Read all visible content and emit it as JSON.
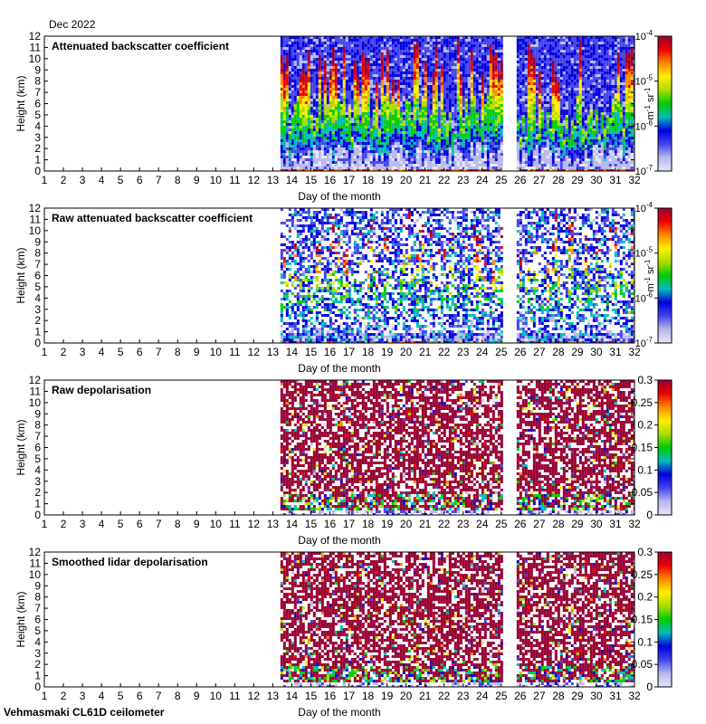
{
  "header": {
    "month_label": "Dec 2022"
  },
  "footer": {
    "station_label": "Vehmasmaki CL61D ceilometer"
  },
  "chart_data": [
    {
      "type": "heatmap",
      "title": "Attenuated backscatter coefficient",
      "xlabel": "Day of the month",
      "ylabel": "Height (km)",
      "xlim": [
        1,
        32
      ],
      "ylim": [
        0,
        12
      ],
      "xticks": [
        1,
        2,
        3,
        4,
        5,
        6,
        7,
        8,
        9,
        10,
        11,
        12,
        13,
        14,
        15,
        16,
        17,
        18,
        19,
        20,
        21,
        22,
        23,
        24,
        25,
        26,
        27,
        28,
        29,
        30,
        31,
        32
      ],
      "yticks": [
        0,
        1,
        2,
        3,
        4,
        5,
        6,
        7,
        8,
        9,
        10,
        11,
        12
      ],
      "data_start_day": 13.4,
      "data_gap_days": [
        [
          25.1,
          25.75
        ]
      ],
      "colorbar": {
        "scale": "log",
        "range": [
          1e-07,
          0.0001
        ],
        "ticks": [
          "10-7",
          "10-6",
          "10-5",
          "10-4"
        ],
        "label": "m-1 sr-1"
      }
    },
    {
      "type": "heatmap",
      "title": "Raw attenuated backscatter coefficient",
      "xlabel": "Day of the month",
      "ylabel": "Height (km)",
      "xlim": [
        1,
        32
      ],
      "ylim": [
        0,
        12
      ],
      "xticks": [
        1,
        2,
        3,
        4,
        5,
        6,
        7,
        8,
        9,
        10,
        11,
        12,
        13,
        14,
        15,
        16,
        17,
        18,
        19,
        20,
        21,
        22,
        23,
        24,
        25,
        26,
        27,
        28,
        29,
        30,
        31,
        32
      ],
      "yticks": [
        0,
        1,
        2,
        3,
        4,
        5,
        6,
        7,
        8,
        9,
        10,
        11,
        12
      ],
      "data_start_day": 13.4,
      "data_gap_days": [
        [
          25.1,
          25.75
        ]
      ],
      "colorbar": {
        "scale": "log",
        "range": [
          1e-07,
          0.0001
        ],
        "ticks": [
          "10-7",
          "10-6",
          "10-5",
          "10-4"
        ],
        "label": "m-1 sr-1"
      }
    },
    {
      "type": "heatmap",
      "title": "Raw depolarisation",
      "xlabel": "Day of the month",
      "ylabel": "Height (km)",
      "xlim": [
        1,
        32
      ],
      "ylim": [
        0,
        12
      ],
      "xticks": [
        1,
        2,
        3,
        4,
        5,
        6,
        7,
        8,
        9,
        10,
        11,
        12,
        13,
        14,
        15,
        16,
        17,
        18,
        19,
        20,
        21,
        22,
        23,
        24,
        25,
        26,
        27,
        28,
        29,
        30,
        31,
        32
      ],
      "yticks": [
        0,
        1,
        2,
        3,
        4,
        5,
        6,
        7,
        8,
        9,
        10,
        11,
        12
      ],
      "data_start_day": 13.4,
      "data_gap_days": [
        [
          25.1,
          25.75
        ]
      ],
      "colorbar": {
        "scale": "linear",
        "range": [
          0,
          0.3
        ],
        "ticks": [
          "0",
          "0.05",
          "0.1",
          "0.15",
          "0.2",
          "0.25",
          "0.3"
        ],
        "label": ""
      }
    },
    {
      "type": "heatmap",
      "title": "Smoothed lidar depolarisation",
      "xlabel": "Day of the month",
      "ylabel": "Height (km)",
      "xlim": [
        1,
        32
      ],
      "ylim": [
        0,
        12
      ],
      "xticks": [
        1,
        2,
        3,
        4,
        5,
        6,
        7,
        8,
        9,
        10,
        11,
        12,
        13,
        14,
        15,
        16,
        17,
        18,
        19,
        20,
        21,
        22,
        23,
        24,
        25,
        26,
        27,
        28,
        29,
        30,
        31,
        32
      ],
      "yticks": [
        0,
        1,
        2,
        3,
        4,
        5,
        6,
        7,
        8,
        9,
        10,
        11,
        12
      ],
      "data_start_day": 13.4,
      "data_gap_days": [
        [
          25.1,
          25.75
        ]
      ],
      "colorbar": {
        "scale": "linear",
        "range": [
          0,
          0.3
        ],
        "ticks": [
          "0",
          "0.05",
          "0.1",
          "0.15",
          "0.2",
          "0.25",
          "0.3"
        ],
        "label": ""
      }
    }
  ]
}
